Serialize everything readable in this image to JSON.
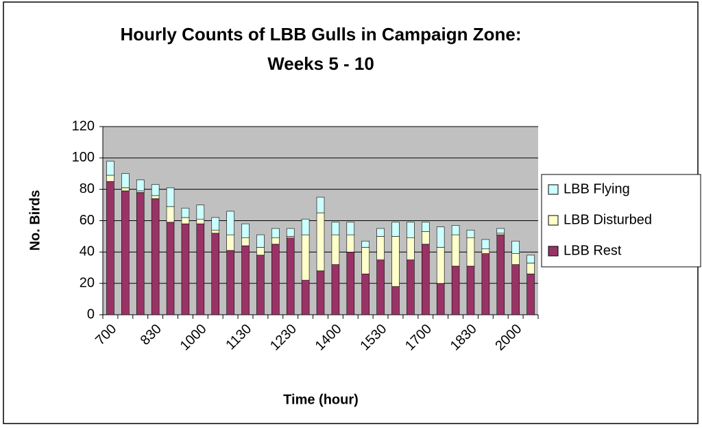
{
  "chart_data": {
    "type": "bar",
    "stacked": true,
    "title": [
      "Hourly Counts of LBB Gulls in Campaign Zone:",
      "Weeks 5 - 10"
    ],
    "x_label": "Time (hour)",
    "y_label": "No. Birds",
    "categories": [
      "700",
      null,
      null,
      "830",
      null,
      null,
      "1000",
      null,
      null,
      "1130",
      null,
      null,
      "1230",
      null,
      null,
      "1400",
      null,
      null,
      "1530",
      null,
      null,
      "1700",
      null,
      null,
      "1830",
      null,
      null,
      "2000",
      null
    ],
    "series": [
      {
        "name": "LBB Rest",
        "color": "#993366",
        "values": [
          85,
          79,
          78,
          74,
          59,
          58,
          58,
          52,
          41,
          44,
          38,
          45,
          49,
          22,
          28,
          32,
          40,
          26,
          35,
          18,
          35,
          45,
          20,
          31,
          31,
          39,
          51,
          32,
          26
        ]
      },
      {
        "name": "LBB Disturbed",
        "color": "#ffffcc",
        "values": [
          4,
          2,
          1,
          2,
          10,
          4,
          3,
          2,
          10,
          5,
          5,
          4,
          1,
          29,
          37,
          19,
          11,
          17,
          15,
          32,
          14,
          8,
          23,
          20,
          18,
          3,
          1,
          7,
          7
        ]
      },
      {
        "name": "LBB Flying",
        "color": "#ccffff",
        "values": [
          9,
          9,
          7,
          7,
          12,
          6,
          9,
          8,
          15,
          9,
          8,
          6,
          5,
          10,
          10,
          8,
          8,
          4,
          5,
          9,
          10,
          6,
          13,
          6,
          5,
          6,
          3,
          8,
          5
        ]
      }
    ],
    "ylim": [
      0,
      120
    ],
    "yticks": [
      0,
      20,
      40,
      60,
      80,
      100,
      120
    ],
    "grid": true,
    "legend": "right"
  }
}
